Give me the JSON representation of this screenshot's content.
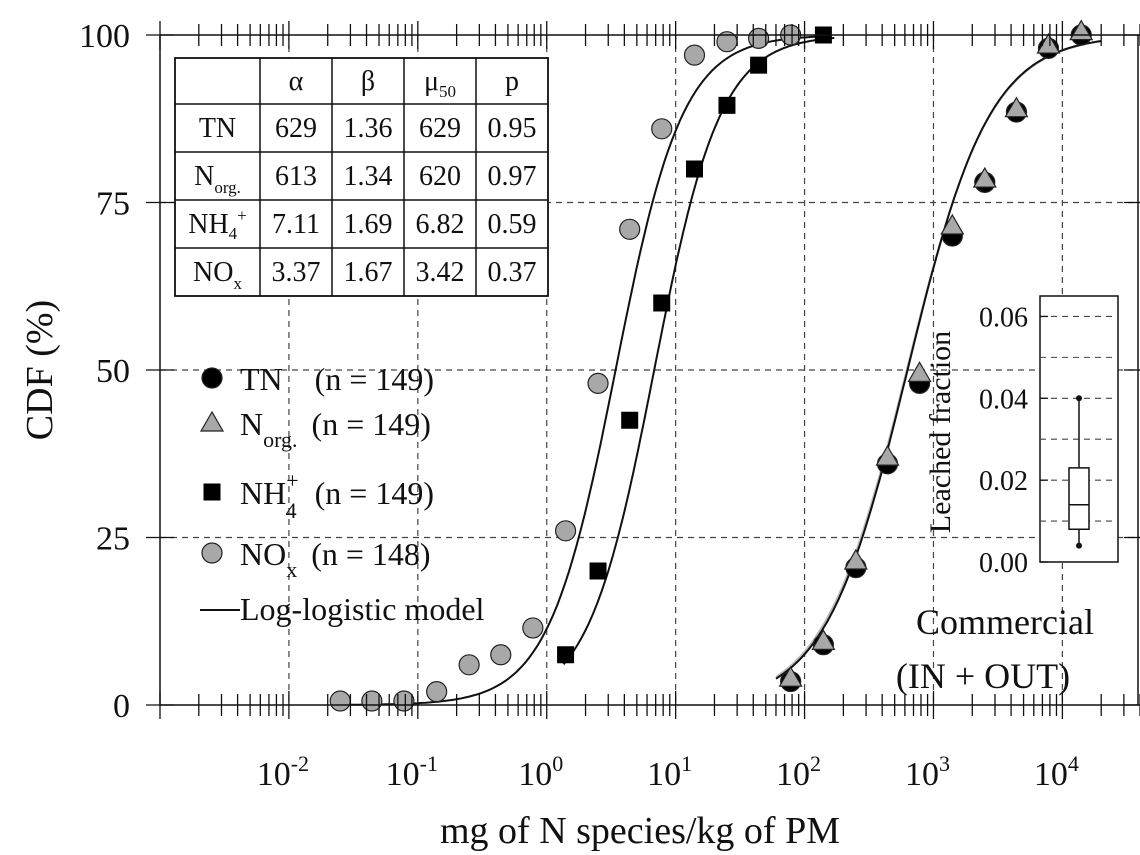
{
  "chart_data": {
    "type": "scatter",
    "xlabel": "mg of N species/kg of PM",
    "ylabel": "CDF (%)",
    "x_scale": "log",
    "xlim": [
      0.001,
      40000
    ],
    "ylim": [
      0,
      100
    ],
    "x_ticks": [
      {
        "base": "10",
        "exp": "-2",
        "value": 0.01
      },
      {
        "base": "10",
        "exp": "-1",
        "value": 0.1
      },
      {
        "base": "10",
        "exp": "0",
        "value": 1
      },
      {
        "base": "10",
        "exp": "1",
        "value": 10
      },
      {
        "base": "10",
        "exp": "2",
        "value": 100
      },
      {
        "base": "10",
        "exp": "3",
        "value": 1000
      },
      {
        "base": "10",
        "exp": "4",
        "value": 10000
      }
    ],
    "y_ticks": [
      "0",
      "25",
      "50",
      "75",
      "100"
    ],
    "grid": true,
    "series": [
      {
        "name": "TN",
        "n_label": "(n = 149)",
        "marker": "circle",
        "color": "#000000",
        "x": [
          78,
          140,
          250,
          440,
          780,
          1400,
          2500,
          4400,
          7800,
          14000
        ],
        "y": [
          3.5,
          9,
          20.5,
          36,
          48,
          70,
          78,
          88.5,
          98,
          100
        ]
      },
      {
        "name": "N",
        "sub": "org.",
        "n_label": "(n = 149)",
        "marker": "triangle",
        "color": "#a8a8a8",
        "x": [
          78,
          140,
          250,
          440,
          780,
          1400,
          2500,
          4400,
          7800,
          14000
        ],
        "y": [
          4,
          9.5,
          21.5,
          37,
          49.5,
          71.5,
          78.5,
          89,
          98.5,
          100.5
        ]
      },
      {
        "name": "NH",
        "sub": "4",
        "sup": "+",
        "n_label": "(n = 149)",
        "marker": "square",
        "color": "#000000",
        "x": [
          1.4,
          2.5,
          4.4,
          7.8,
          14,
          25,
          44,
          140
        ],
        "y": [
          7.5,
          20,
          42.5,
          60,
          80,
          89.5,
          95.5,
          100
        ]
      },
      {
        "name": "NO",
        "sub": "x",
        "n_label": "(n = 148)",
        "marker": "circle",
        "color": "#a8a8a8",
        "x": [
          0.025,
          0.044,
          0.078,
          0.14,
          0.25,
          0.44,
          0.78,
          1.4,
          2.5,
          4.4,
          7.8,
          14,
          25,
          44,
          78
        ],
        "y": [
          0.6,
          0.6,
          0.6,
          2,
          6,
          7.5,
          11.5,
          26,
          48,
          71,
          86,
          97,
          99,
          99.5,
          100
        ]
      }
    ],
    "model_label": "Log-logistic model",
    "table": {
      "headers": [
        "",
        "α",
        "β",
        "μ",
        "p"
      ],
      "mu_sub": "50",
      "rows": [
        {
          "label": "TN",
          "sub": "",
          "sup": "",
          "values": [
            "629",
            "1.36",
            "629",
            "0.95"
          ]
        },
        {
          "label": "N",
          "sub": "org.",
          "sup": "",
          "values": [
            "613",
            "1.34",
            "620",
            "0.97"
          ]
        },
        {
          "label": "NH",
          "sub": "4",
          "sup": "+",
          "values": [
            "7.11",
            "1.69",
            "6.82",
            "0.59"
          ]
        },
        {
          "label": "NO",
          "sub": "x",
          "sup": "",
          "values": [
            "3.37",
            "1.67",
            "3.42",
            "0.37"
          ]
        }
      ]
    },
    "inset": {
      "type": "boxplot",
      "ylabel": "Leached fraction",
      "ylim": [
        0,
        0.065
      ],
      "y_ticks": [
        "0.00",
        "0.02",
        "0.04",
        "0.06"
      ],
      "box": {
        "min": 0.004,
        "q1": 0.008,
        "median": 0.014,
        "q3": 0.023,
        "max": 0.04
      }
    },
    "annotation": [
      "Commercial",
      "(IN + OUT)"
    ]
  }
}
